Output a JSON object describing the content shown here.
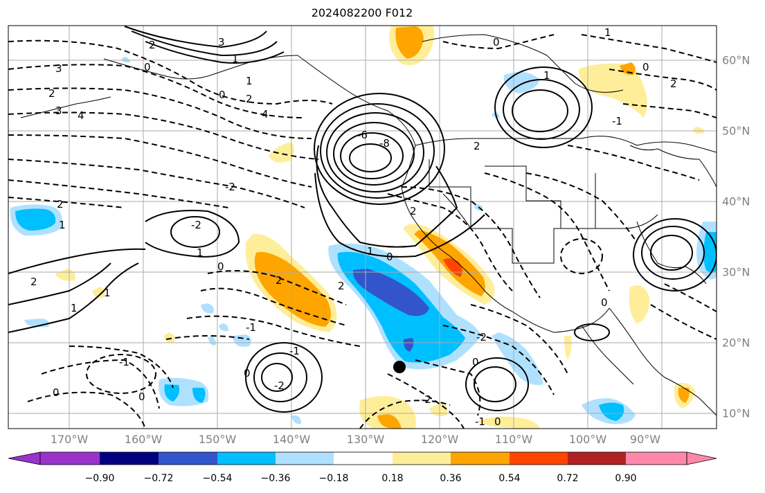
{
  "title": "2024082200 F012",
  "lon_labels": [
    "170°W",
    "160°W",
    "150°W",
    "140°W",
    "130°W",
    "120°W",
    "110°W",
    "100°W",
    "90°W"
  ],
  "lat_labels": [
    "60°N",
    "50°N",
    "40°N",
    "30°N",
    "20°N",
    "10°N"
  ],
  "colorbar": {
    "ticks": [
      "−0.90",
      "−0.72",
      "−0.54",
      "−0.36",
      "−0.18",
      "0.18",
      "0.36",
      "0.54",
      "0.72",
      "0.90"
    ],
    "colors": [
      "#9933cc",
      "#000080",
      "#3355cc",
      "#00bfff",
      "#afe1ff",
      "#ffffff",
      "#ffee99",
      "#ffa500",
      "#ff4500",
      "#b22222",
      "#ff88aa"
    ]
  },
  "contour_labels": [
    "3",
    "2",
    "3",
    "4",
    "0",
    "2",
    "1",
    "3",
    "1",
    "-6",
    "-8",
    "4",
    "0",
    "2",
    "-2",
    "2",
    "1",
    "1",
    "-2",
    "1",
    "2",
    "2",
    "1",
    "0",
    "2",
    "0",
    "1",
    "-1",
    "-1",
    "0",
    "0",
    "-2",
    "0",
    "-1",
    "2",
    "0",
    "-2",
    "-2",
    "-1",
    "0",
    "0",
    "2",
    "1",
    "1",
    "-1",
    "0",
    "2",
    "0"
  ],
  "marker": "black-dot"
}
